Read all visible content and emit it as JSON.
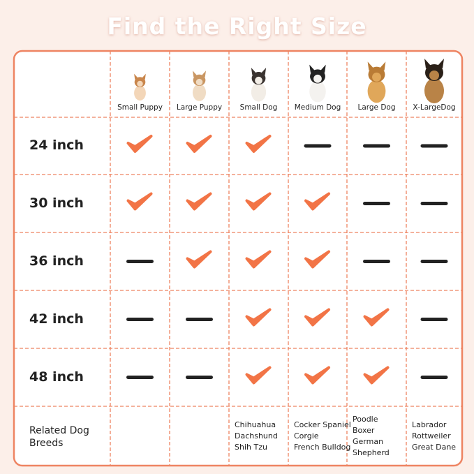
{
  "header": {
    "title": "Find the Right Size"
  },
  "table": {
    "columns": [
      "Small Puppy",
      "Large Puppy",
      "Small Dog",
      "Medium Dog",
      "Large Dog",
      "X-LargeDog"
    ],
    "rows": [
      {
        "label": "24 inch",
        "fit": [
          true,
          true,
          true,
          false,
          false,
          false
        ]
      },
      {
        "label": "30 inch",
        "fit": [
          true,
          true,
          true,
          true,
          false,
          false
        ]
      },
      {
        "label": "36 inch",
        "fit": [
          false,
          true,
          true,
          true,
          false,
          false
        ]
      },
      {
        "label": "42 inch",
        "fit": [
          false,
          false,
          true,
          true,
          true,
          false
        ]
      },
      {
        "label": "48 inch",
        "fit": [
          false,
          false,
          true,
          true,
          true,
          false
        ]
      }
    ],
    "breeds_label": "Related Dog Breeds",
    "breeds": [
      [],
      [],
      [
        "Chihuahua",
        "Dachshund",
        "Shih Tzu"
      ],
      [
        "Cocker Spaniel",
        "Corgie",
        "French Bulldog"
      ],
      [
        "Poodle",
        "Boxer",
        "German",
        "Shepherd"
      ],
      [
        "Labrador",
        "Rottweiler",
        "Great Dane"
      ]
    ]
  }
}
